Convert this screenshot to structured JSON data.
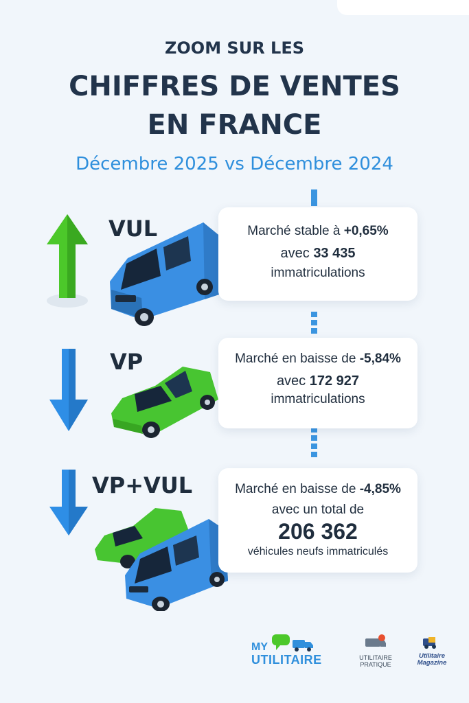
{
  "header": {
    "kicker": "ZOOM SUR LES",
    "title_line1": "CHIFFRES DE VENTES",
    "title_line2": "EN FRANCE",
    "subtitle": "Décembre 2025 vs Décembre 2024"
  },
  "colors": {
    "dark_text": "#22344b",
    "accent_blue": "#2f8fdc",
    "arrow_green": "#4cc82a",
    "arrow_blue": "#2e8ee6",
    "van_blue": "#3a8fe3",
    "car_green": "#48c531"
  },
  "sections": [
    {
      "label": "VUL",
      "trend": "up",
      "icon": "van-icon",
      "line1_prefix": "Marché stable à ",
      "line1_value": "+0,65%",
      "line2_prefix": "avec ",
      "line2_value": "33 435",
      "line3": "immatriculations"
    },
    {
      "label": "VP",
      "trend": "down",
      "icon": "car-icon",
      "line1_prefix": "Marché en baisse de ",
      "line1_value": "-5,84%",
      "line2_prefix": "avec ",
      "line2_value": "172 927",
      "line3": "immatriculations"
    },
    {
      "label": "VP+VUL",
      "trend": "down",
      "icon": "car-and-van-icon",
      "line1_prefix": "Marché en baisse de ",
      "line1_value": "-4,85%",
      "line2": "avec un total de",
      "big_value": "206 362",
      "line3": "véhicules neufs immatriculés"
    }
  ],
  "logos": {
    "my": "MY",
    "utilitaire": "UTILITAIRE",
    "pratique_line1": "UTILITAIRE",
    "pratique_line2": "PRATIQUE",
    "magazine_line1": "Utilitaire",
    "magazine_line2": "Magazine"
  }
}
